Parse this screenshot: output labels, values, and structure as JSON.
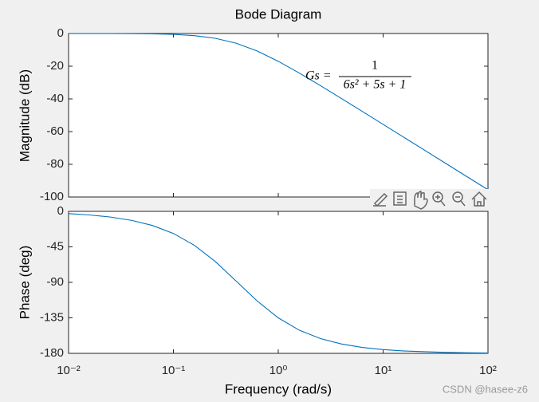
{
  "chart_data": [
    {
      "type": "line",
      "title": "Bode Diagram",
      "ylabel": "Magnitude (dB)",
      "log_x": true,
      "annotation": {
        "lhs": "Gs =",
        "numerator": "1",
        "denominator": "6s² + 5s + 1"
      },
      "x": [
        0.01,
        0.01585,
        0.02512,
        0.03981,
        0.0631,
        0.1,
        0.1585,
        0.2512,
        0.3981,
        0.631,
        1,
        1.585,
        2.512,
        3.981,
        6.31,
        10,
        15.85,
        25.12,
        39.81,
        63.1,
        100
      ],
      "series": [
        {
          "color": "#0072bd",
          "values": [
            -0.01,
            -0.01,
            -0.04,
            -0.09,
            -0.22,
            -0.55,
            -1.3,
            -2.93,
            -5.98,
            -10.75,
            -16.99,
            -24.17,
            -31.81,
            -39.66,
            -47.6,
            -55.58,
            -63.57,
            -71.57,
            -79.57,
            -87.56,
            -95.56
          ]
        }
      ],
      "xlim": [
        0.01,
        100
      ],
      "ylim": [
        -100,
        0
      ],
      "yticks": [
        0,
        -20,
        -40,
        -60,
        -80,
        -100
      ]
    },
    {
      "type": "line",
      "ylabel": "Phase (deg)",
      "xlabel": "Frequency  (rad/s)",
      "log_x": true,
      "x": [
        0.01,
        0.01585,
        0.02512,
        0.03981,
        0.0631,
        0.1,
        0.1585,
        0.2512,
        0.3981,
        0.631,
        1,
        1.585,
        2.512,
        3.981,
        6.31,
        10,
        15.85,
        25.12,
        39.81,
        63.1,
        100
      ],
      "series": [
        {
          "color": "#0072bd",
          "values": [
            -2.86,
            -4.54,
            -7.19,
            -11.36,
            -17.91,
            -28.01,
            -43.02,
            -63.67,
            -88.59,
            -113.76,
            -135,
            -150.61,
            -161.18,
            -168.05,
            -172.45,
            -175.23,
            -176.99,
            -177.9,
            -178.8,
            -179.25,
            -179.52
          ]
        }
      ],
      "xlim": [
        0.01,
        100
      ],
      "ylim": [
        -180,
        0
      ],
      "yticks": [
        0,
        -45,
        -90,
        -135,
        -180
      ],
      "xticks": [
        {
          "value": 0.01,
          "label": "10⁻²"
        },
        {
          "value": 0.1,
          "label": "10⁻¹"
        },
        {
          "value": 1,
          "label": "10⁰"
        },
        {
          "value": 10,
          "label": "10¹"
        },
        {
          "value": 100,
          "label": "10²"
        }
      ]
    }
  ],
  "watermark": "CSDN @hasee-z6"
}
